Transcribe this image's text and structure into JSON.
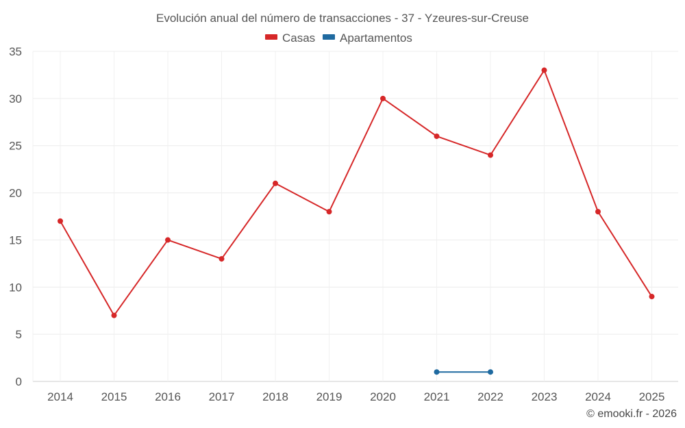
{
  "chart_data": {
    "type": "line",
    "title": "Evolución anual del número de transacciones - 37 - Yzeures-sur-Creuse",
    "categories": [
      "2014",
      "2015",
      "2016",
      "2017",
      "2018",
      "2019",
      "2020",
      "2021",
      "2022",
      "2023",
      "2024",
      "2025"
    ],
    "ylim": [
      0,
      35
    ],
    "yticks": [
      0,
      5,
      10,
      15,
      20,
      25,
      30,
      35
    ],
    "grid": true,
    "legend_position": "top-center",
    "series": [
      {
        "name": "Casas",
        "color": "#d62728",
        "values": [
          17,
          7,
          15,
          13,
          21,
          18,
          30,
          26,
          24,
          33,
          18,
          9
        ]
      },
      {
        "name": "Apartamentos",
        "color": "#1f6aa0",
        "values": [
          null,
          null,
          null,
          null,
          null,
          null,
          null,
          1,
          1,
          null,
          null,
          null
        ]
      }
    ]
  },
  "credit": "© emooki.fr - 2026"
}
